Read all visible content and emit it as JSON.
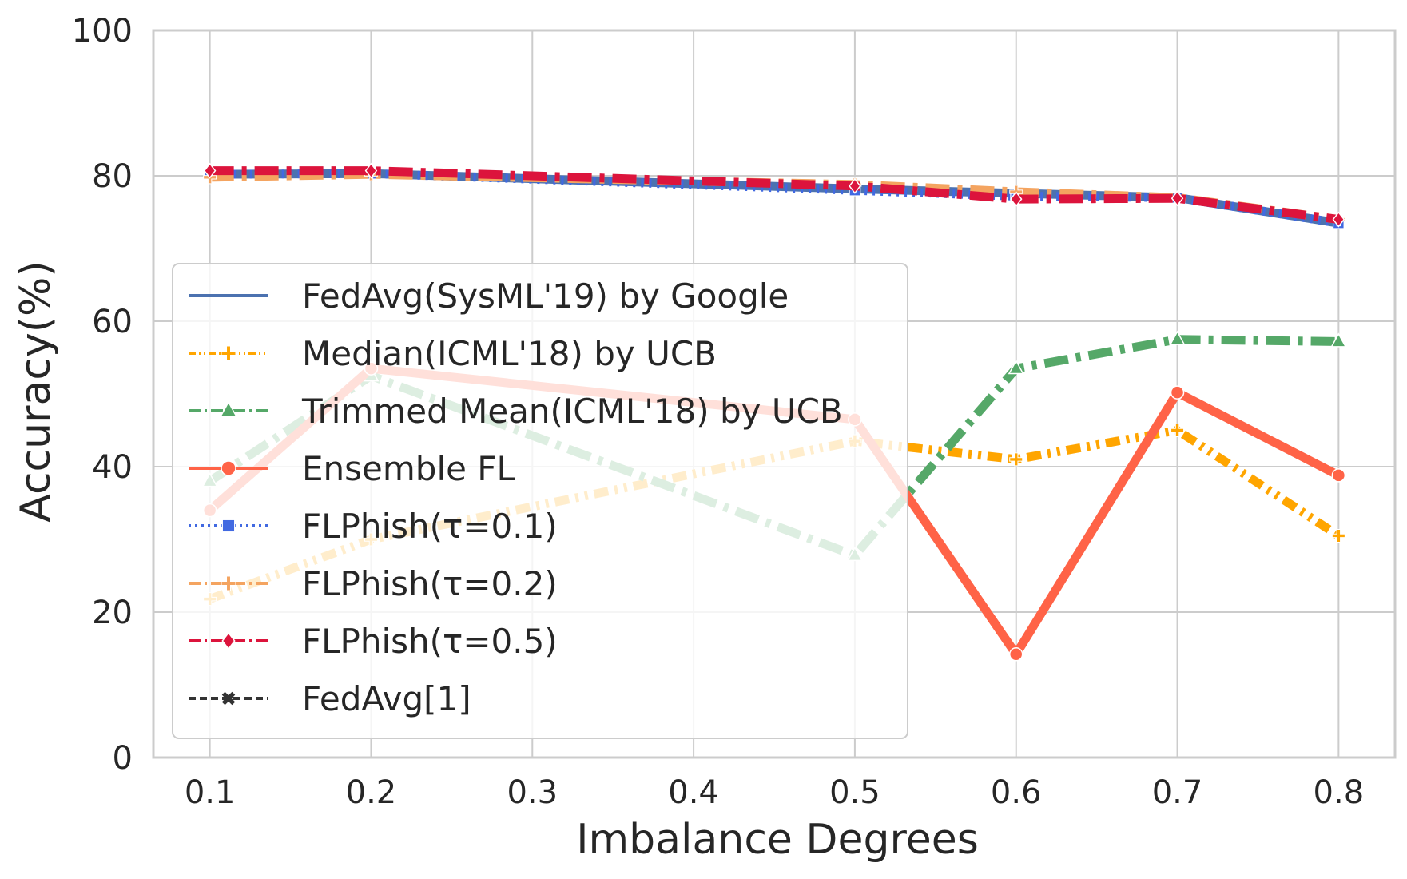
{
  "chart_data": {
    "type": "line",
    "xlabel": "Imbalance Degrees",
    "ylabel": "Accuracy(%)",
    "xlim": [
      0.065,
      0.835
    ],
    "ylim": [
      0,
      100
    ],
    "xticks": [
      "0.1",
      "0.2",
      "0.3",
      "0.4",
      "0.5",
      "0.6",
      "0.7",
      "0.8"
    ],
    "yticks": [
      "0",
      "20",
      "40",
      "60",
      "80",
      "100"
    ],
    "grid": true,
    "legend_position": "center-left",
    "series": [
      {
        "name": "FedAvg(SysML'19) by Google",
        "color": "#4c72b0",
        "marker": "none",
        "dash": "solid",
        "x": [
          0.1,
          0.2,
          0.5,
          0.6,
          0.7,
          0.8
        ],
        "y": [
          80.2,
          80.3,
          78.2,
          77.6,
          77.0,
          73.5
        ]
      },
      {
        "name": "Median(ICML'18) by UCB",
        "color": "#ffa500",
        "marker": "plus",
        "dash": "dashdotdot",
        "x": [
          0.1,
          0.2,
          0.5,
          0.6,
          0.7,
          0.8
        ],
        "y": [
          21.8,
          30.0,
          43.5,
          41.0,
          45.0,
          30.5
        ]
      },
      {
        "name": "Trimmed Mean(ICML'18) by UCB",
        "color": "#55a868",
        "marker": "triangle",
        "dash": "dashdot",
        "x": [
          0.1,
          0.2,
          0.5,
          0.6,
          0.7,
          0.8
        ],
        "y": [
          38.0,
          52.5,
          27.8,
          53.5,
          57.5,
          57.2
        ]
      },
      {
        "name": "Ensemble FL",
        "color": "#ff6347",
        "marker": "circle",
        "dash": "solid",
        "x": [
          0.1,
          0.2,
          0.5,
          0.6,
          0.7,
          0.8
        ],
        "y": [
          34.0,
          53.5,
          46.5,
          14.2,
          50.2,
          38.8
        ]
      },
      {
        "name": "FLPhish(τ=0.1)",
        "color": "#4169e1",
        "marker": "square",
        "dash": "dotted",
        "x": [
          0.1,
          0.2,
          0.5,
          0.6,
          0.7,
          0.8
        ],
        "y": [
          80.2,
          80.3,
          78.0,
          77.2,
          77.0,
          73.5
        ]
      },
      {
        "name": "FLPhish(τ=0.2)",
        "color": "#f4a460",
        "marker": "plus",
        "dash": "dashdot",
        "x": [
          0.1,
          0.2,
          0.5,
          0.6,
          0.7,
          0.8
        ],
        "y": [
          79.8,
          80.2,
          78.8,
          77.8,
          77.0,
          74.0
        ]
      },
      {
        "name": "FLPhish(τ=0.5)",
        "color": "#dc143c",
        "marker": "diamond",
        "dash": "dashdot",
        "x": [
          0.1,
          0.2,
          0.5,
          0.6,
          0.7,
          0.8
        ],
        "y": [
          80.7,
          80.7,
          78.6,
          76.8,
          76.9,
          74.0
        ]
      },
      {
        "name": "FedAvg[1]",
        "color": "#333333",
        "marker": "x",
        "dash": "dashed",
        "x": [],
        "y": []
      }
    ]
  }
}
